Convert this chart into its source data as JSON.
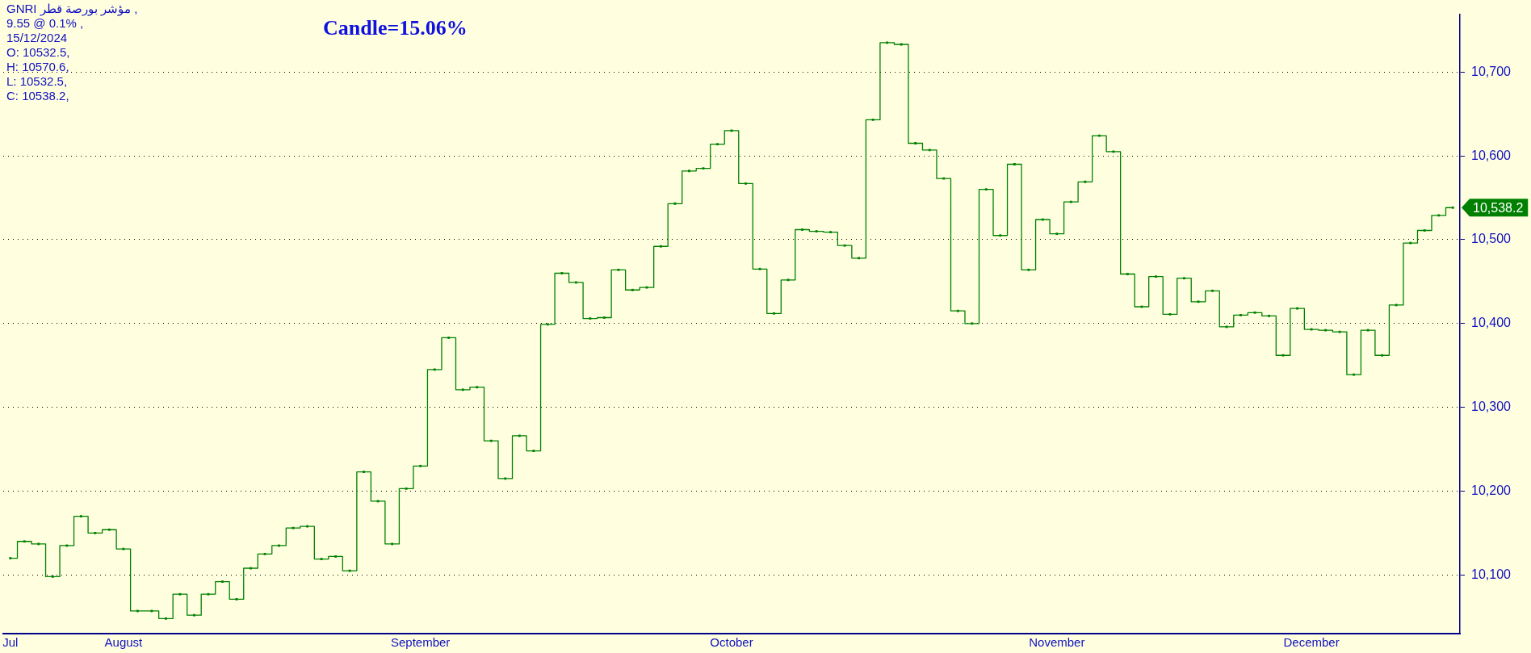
{
  "chart_data": {
    "type": "step",
    "title": "Candle=15.06%",
    "annotations": [
      "GNRI      مؤشر بورصة قطر  ,",
      "9.55 @ 0.1%  ,",
      "15/12/2024",
      "O: 10532.5,",
      "H: 10570.6,",
      "L: 10532.5,",
      "C: 10538.2,",
      "10,538.2"
    ],
    "categories": [
      "Jul",
      null,
      null,
      null,
      null,
      null,
      null,
      null,
      "August",
      null,
      null,
      null,
      null,
      null,
      null,
      null,
      null,
      null,
      null,
      null,
      null,
      null,
      null,
      null,
      null,
      null,
      null,
      null,
      null,
      "September",
      null,
      null,
      null,
      null,
      null,
      null,
      null,
      null,
      null,
      null,
      null,
      null,
      null,
      null,
      null,
      null,
      null,
      null,
      null,
      null,
      null,
      "October",
      null,
      null,
      null,
      null,
      null,
      null,
      null,
      null,
      null,
      null,
      null,
      null,
      null,
      null,
      null,
      null,
      null,
      null,
      null,
      null,
      null,
      null,
      "November",
      null,
      null,
      null,
      null,
      null,
      null,
      null,
      null,
      null,
      null,
      null,
      null,
      null,
      null,
      null,
      null,
      null,
      "December",
      null,
      null,
      null,
      null,
      null,
      null,
      null,
      null,
      null,
      null
    ],
    "series": [
      {
        "color": "#008000",
        "values": [
          10120,
          10140,
          10137,
          10098,
          10135,
          10170,
          10150,
          10154,
          10131,
          10057,
          10057,
          10048,
          10077,
          10052,
          10077,
          10092,
          10071,
          10108,
          10125,
          10135,
          10156,
          10158,
          10119,
          10122,
          10105,
          10223,
          10188,
          10137,
          10203,
          10230,
          10345,
          10383,
          10321,
          10324,
          10260,
          10215,
          10266,
          10248,
          10399,
          10460,
          10449,
          10406,
          10407,
          10464,
          10440,
          10443,
          10492,
          10543,
          10582,
          10585,
          10614,
          10630,
          10567,
          10465,
          10412,
          10452,
          10512,
          10510,
          10509,
          10493,
          10478,
          10643,
          10735,
          10733,
          10615,
          10607,
          10573,
          10415,
          10400,
          10560,
          10505,
          10590,
          10464,
          10524,
          10507,
          10545,
          10569,
          10624,
          10605,
          10459,
          10420,
          10456,
          10411,
          10454,
          10426,
          10439,
          10396,
          10410,
          10413,
          10409,
          10362,
          10418,
          10393,
          10392,
          10390,
          10339,
          10392,
          10362,
          10422,
          10496,
          10511,
          10529,
          10538.2
        ]
      }
    ],
    "ylim": [
      10030,
      10769
    ],
    "yticks": [
      {
        "value": 10100,
        "label": "10,100"
      },
      {
        "value": 10200,
        "label": "10,200"
      },
      {
        "value": 10300,
        "label": "10,300"
      },
      {
        "value": 10400,
        "label": "10,400"
      },
      {
        "value": 10500,
        "label": "10,500"
      },
      {
        "value": 10600,
        "label": "10,600"
      },
      {
        "value": 10700,
        "label": "10,700"
      }
    ],
    "grid": "y",
    "legend": false,
    "marker": "square",
    "line_style": "solid"
  }
}
